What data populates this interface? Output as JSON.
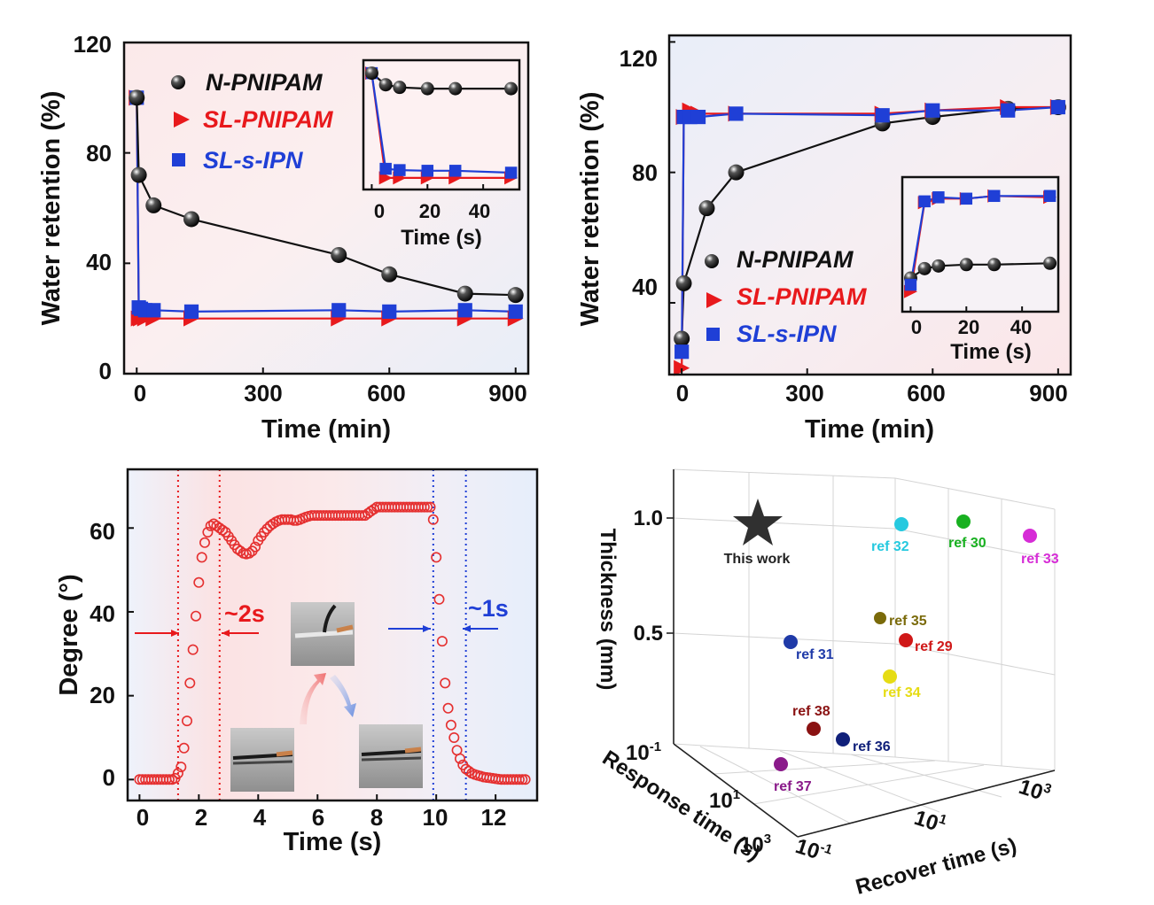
{
  "colors": {
    "n_pnipam": "#111111",
    "sl_pnipam": "#e8191c",
    "sl_s_ipn": "#1f3fd6",
    "degree_markers": "#e53030"
  },
  "chart_data": [
    {
      "id": "a",
      "type": "line",
      "xlabel": "Time (min)",
      "ylabel": "Water retention (%)",
      "xlim": [
        -30,
        930
      ],
      "ylim": [
        0,
        120
      ],
      "xticks": [
        "0",
        "300",
        "600",
        "900"
      ],
      "yticks": [
        "0",
        "40",
        "80",
        "120"
      ],
      "legend": [
        "N-PNIPAM",
        "SL-PNIPAM",
        "SL-s-IPN"
      ],
      "legend_position": "top-left",
      "series": [
        {
          "name": "N-PNIPAM",
          "marker": "circle",
          "x": [
            0,
            5,
            40,
            130,
            480,
            600,
            780,
            900
          ],
          "y": [
            100,
            72,
            61,
            56,
            43,
            36,
            29,
            28.5
          ]
        },
        {
          "name": "SL-PNIPAM",
          "marker": "triangle",
          "x": [
            0,
            5,
            10,
            20,
            40,
            130,
            480,
            600,
            780,
            900
          ],
          "y": [
            100,
            20,
            20,
            20,
            20,
            20,
            20,
            20,
            20,
            20
          ]
        },
        {
          "name": "SL-s-IPN",
          "marker": "square",
          "x": [
            0,
            5,
            10,
            20,
            40,
            130,
            480,
            600,
            780,
            900
          ],
          "y": [
            100,
            24,
            23.5,
            23,
            23,
            22.5,
            23,
            22.5,
            23,
            22.5
          ]
        }
      ],
      "inset": {
        "xlabel": "Time (s)",
        "xticks": [
          "0",
          "20",
          "40"
        ],
        "xlim": [
          -3,
          53
        ],
        "ylim": [
          10,
          110
        ],
        "series": [
          {
            "name": "N-PNIPAM",
            "x": [
              0,
              5,
              10,
              20,
              30,
              50
            ],
            "y": [
              100,
              91,
              89,
              88,
              88,
              88
            ]
          },
          {
            "name": "SL-PNIPAM",
            "x": [
              0,
              5,
              10,
              20,
              30,
              50
            ],
            "y": [
              100,
              19,
              19,
              19,
              19,
              19
            ]
          },
          {
            "name": "SL-s-IPN",
            "x": [
              0,
              5,
              10,
              20,
              30,
              50
            ],
            "y": [
              100,
              26,
              25,
              24.5,
              24.5,
              23
            ]
          }
        ]
      }
    },
    {
      "id": "b",
      "type": "line",
      "xlabel": "Time (min)",
      "ylabel": "Water retention (%)",
      "xlim": [
        -30,
        930
      ],
      "ylim": [
        18,
        122
      ],
      "xticks": [
        "0",
        "300",
        "600",
        "900"
      ],
      "yticks": [
        "40",
        "80",
        "120"
      ],
      "legend": [
        "N-PNIPAM",
        "SL-PNIPAM",
        "SL-s-IPN"
      ],
      "legend_position": "bottom-left",
      "series": [
        {
          "name": "N-PNIPAM",
          "marker": "circle",
          "x": [
            0,
            5,
            60,
            130,
            480,
            600,
            780,
            900
          ],
          "y": [
            29,
            46,
            69,
            80,
            95,
            97,
            99.5,
            100
          ]
        },
        {
          "name": "SL-PNIPAM",
          "marker": "triangle",
          "x": [
            0,
            5,
            20,
            40,
            130,
            480,
            600,
            780,
            900
          ],
          "y": [
            20,
            97,
            99,
            98,
            98,
            98,
            99,
            100,
            100
          ]
        },
        {
          "name": "SL-s-IPN",
          "marker": "square",
          "x": [
            0,
            5,
            20,
            40,
            130,
            480,
            600,
            780,
            900
          ],
          "y": [
            25,
            97,
            97,
            97,
            98,
            97.5,
            99,
            99,
            100
          ]
        }
      ],
      "inset": {
        "xlabel": "Time (s)",
        "xticks": [
          "0",
          "20",
          "40"
        ],
        "xlim": [
          -3,
          53
        ],
        "ylim": [
          10,
          110
        ],
        "series": [
          {
            "name": "N-PNIPAM",
            "x": [
              0,
              5,
              10,
              20,
              30,
              50
            ],
            "y": [
              35,
              42,
              44,
              45,
              45,
              46
            ]
          },
          {
            "name": "SL-PNIPAM",
            "x": [
              0,
              5,
              10,
              20,
              30,
              50
            ],
            "y": [
              25,
              91,
              94,
              94,
              96,
              95
            ]
          },
          {
            "name": "SL-s-IPN",
            "x": [
              0,
              5,
              10,
              20,
              30,
              50
            ],
            "y": [
              30,
              92,
              95,
              94,
              96,
              96
            ]
          }
        ]
      }
    },
    {
      "id": "c",
      "type": "scatter",
      "xlabel": "Time (s)",
      "ylabel": "Degree (°)",
      "xlim": [
        -0.4,
        13.4
      ],
      "ylim": [
        -5,
        74
      ],
      "xticks": [
        "0",
        "2",
        "4",
        "6",
        "8",
        "10",
        "12"
      ],
      "yticks": [
        "0",
        "20",
        "40",
        "60"
      ],
      "annotations": [
        "~2s",
        "~1s"
      ],
      "interval_bounds_s": [
        1.3,
        2.7,
        9.9,
        11.0
      ],
      "series": [
        {
          "name": "",
          "marker": "open-circle",
          "x": [
            0,
            0.1,
            0.2,
            0.3,
            0.4,
            0.5,
            0.6,
            0.7,
            0.8,
            0.9,
            1.0,
            1.1,
            1.2,
            1.3,
            1.4,
            1.5,
            1.6,
            1.7,
            1.8,
            1.9,
            2.0,
            2.1,
            2.2,
            2.3,
            2.4,
            2.5,
            2.6,
            2.7,
            2.8,
            2.9,
            3.0,
            3.1,
            3.2,
            3.3,
            3.4,
            3.5,
            3.6,
            3.7,
            3.8,
            3.9,
            4.0,
            4.1,
            4.2,
            4.3,
            4.4,
            4.5,
            4.6,
            4.7,
            4.8,
            4.9,
            5.0,
            5.1,
            5.2,
            5.3,
            5.4,
            5.5,
            5.6,
            5.7,
            5.8,
            5.9,
            6.0,
            6.1,
            6.2,
            6.3,
            6.4,
            6.5,
            6.6,
            6.7,
            6.8,
            6.9,
            7.0,
            7.1,
            7.2,
            7.3,
            7.4,
            7.5,
            7.6,
            7.7,
            7.8,
            7.9,
            8.0,
            8.1,
            8.2,
            8.3,
            8.4,
            8.5,
            8.6,
            8.7,
            8.8,
            8.9,
            9.0,
            9.1,
            9.2,
            9.3,
            9.4,
            9.5,
            9.6,
            9.7,
            9.8,
            9.9,
            10.0,
            10.1,
            10.2,
            10.3,
            10.4,
            10.5,
            10.6,
            10.7,
            10.8,
            10.9,
            11.0,
            11.1,
            11.2,
            11.3,
            11.4,
            11.5,
            11.6,
            11.7,
            11.8,
            11.9,
            12.0,
            12.1,
            12.2,
            12.3,
            12.4,
            12.5,
            12.6,
            12.7,
            12.8,
            12.9,
            13.0
          ],
          "y": [
            0,
            0,
            0,
            0,
            0,
            0,
            0,
            0,
            0,
            0,
            0,
            0,
            0.3,
            1.5,
            3,
            7.5,
            14,
            23,
            31,
            39,
            47,
            53,
            56.5,
            59,
            60.5,
            61,
            60.5,
            60,
            59.5,
            59,
            58,
            57,
            56,
            55,
            54.5,
            54,
            53.8,
            54,
            54.5,
            55.5,
            57,
            58,
            59,
            59.8,
            60.5,
            61,
            61.5,
            61.8,
            62,
            62,
            62,
            62,
            61.8,
            61.8,
            62,
            62.3,
            62.6,
            62.8,
            63,
            63,
            63,
            63,
            63,
            63,
            63,
            63,
            63,
            63,
            63,
            63,
            63,
            63,
            63,
            63,
            63,
            63,
            63,
            63.5,
            64,
            64.5,
            65,
            65,
            65,
            65,
            65,
            65,
            65,
            65,
            65,
            65,
            65,
            65,
            65,
            65,
            65,
            65,
            65,
            65,
            65,
            62,
            53,
            43,
            33,
            23,
            17,
            13,
            10,
            7,
            5,
            3.5,
            2.5,
            2,
            1.5,
            1.2,
            1,
            0.8,
            0.6,
            0.5,
            0.4,
            0.3,
            0.2,
            0.1,
            0,
            0,
            0,
            0,
            0,
            0,
            0,
            0,
            0
          ]
        }
      ]
    },
    {
      "id": "d",
      "type": "scatter",
      "dimensions": 3,
      "xlabel": "Recover time (s)",
      "ylabel": "Response time (s)",
      "zlabel": "Thickness (mm)",
      "zticks": [
        "0.5",
        "1.0"
      ],
      "response_ticks": [
        {
          "base": "10",
          "exp": "-1"
        },
        {
          "base": "10",
          "exp": "1"
        },
        {
          "base": "10",
          "exp": "3"
        }
      ],
      "recover_ticks": [
        {
          "base": "10",
          "exp": "-1"
        },
        {
          "base": "10",
          "exp": "1"
        },
        {
          "base": "10",
          "exp": "3"
        }
      ],
      "points": [
        {
          "label": "This work",
          "marker": "star",
          "color": "#303030"
        },
        {
          "label": "ref 32",
          "marker": "sphere",
          "color": "#26c9df"
        },
        {
          "label": "ref 30",
          "marker": "sphere",
          "color": "#18b020"
        },
        {
          "label": "ref 33",
          "marker": "sphere",
          "color": "#d62cd6"
        },
        {
          "label": "ref 35",
          "marker": "sphere",
          "color": "#7a6a0a"
        },
        {
          "label": "ref 31",
          "marker": "sphere",
          "color": "#1f3aa8"
        },
        {
          "label": "ref 29",
          "marker": "sphere",
          "color": "#d01818"
        },
        {
          "label": "ref 34",
          "marker": "sphere",
          "color": "#e6dc14"
        },
        {
          "label": "ref 38",
          "marker": "sphere",
          "color": "#8a1212"
        },
        {
          "label": "ref 36",
          "marker": "sphere",
          "color": "#10207a"
        },
        {
          "label": "ref 37",
          "marker": "sphere",
          "color": "#8a1a8a"
        }
      ]
    }
  ]
}
